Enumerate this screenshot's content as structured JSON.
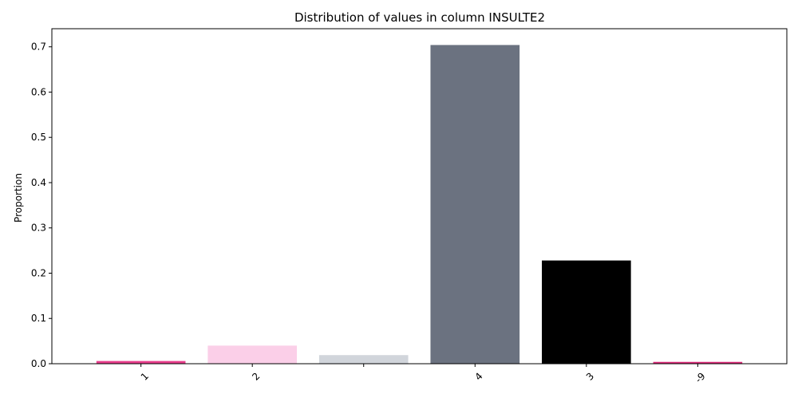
{
  "chart_data": {
    "type": "bar",
    "title": "Distribution of values in column INSULTE2",
    "xlabel": "",
    "ylabel": "Proportion",
    "categories": [
      "1",
      "2",
      "",
      "4",
      "3",
      "-9"
    ],
    "values": [
      0.006,
      0.04,
      0.019,
      0.704,
      0.228,
      0.004
    ],
    "colors": [
      "#e83e8c",
      "#fbcfe8",
      "#d1d5db",
      "#6b7280",
      "#000000",
      "#db2777"
    ],
    "ylim": [
      0,
      0.74
    ],
    "yticks": [
      0.0,
      0.1,
      0.2,
      0.3,
      0.4,
      0.5,
      0.6,
      0.7
    ],
    "ytick_labels": [
      "0.0",
      "0.1",
      "0.2",
      "0.3",
      "0.4",
      "0.5",
      "0.6",
      "0.7"
    ],
    "xtick_rotation": -45,
    "grid": false,
    "legend": "none"
  }
}
